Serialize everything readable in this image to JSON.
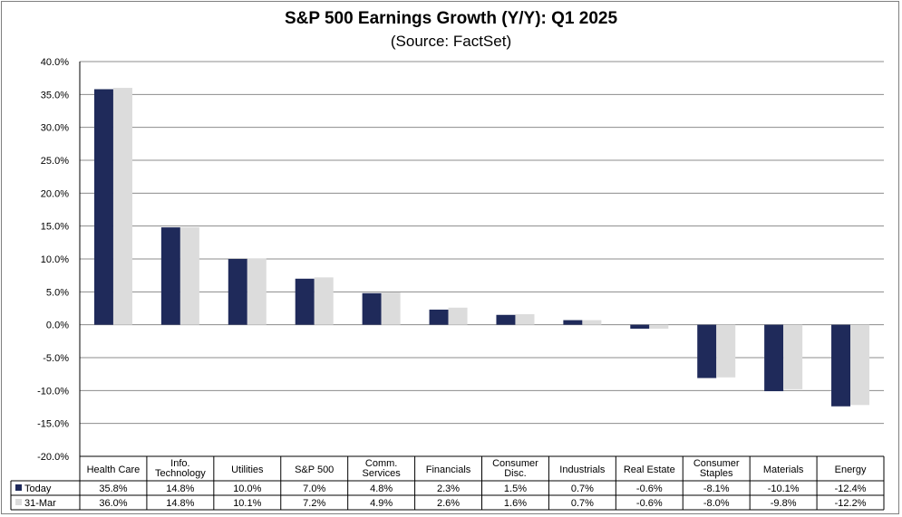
{
  "chart_data": {
    "type": "bar",
    "title": "S&P 500 Earnings Growth (Y/Y): Q1 2025",
    "subtitle": "(Source: FactSet)",
    "categories": [
      [
        "Health Care"
      ],
      [
        "Info.",
        "Technology"
      ],
      [
        "Utilities"
      ],
      [
        "S&P 500"
      ],
      [
        "Comm.",
        "Services"
      ],
      [
        "Financials"
      ],
      [
        "Consumer",
        "Disc."
      ],
      [
        "Industrials"
      ],
      [
        "Real Estate"
      ],
      [
        "Consumer",
        "Staples"
      ],
      [
        "Materials"
      ],
      [
        "Energy"
      ]
    ],
    "series": [
      {
        "name": "Today",
        "color": "#1f2a5a",
        "values": [
          35.8,
          14.8,
          10.0,
          7.0,
          4.8,
          2.3,
          1.5,
          0.7,
          -0.6,
          -8.1,
          -10.1,
          -12.4
        ],
        "labels": [
          "35.8%",
          "14.8%",
          "10.0%",
          "7.0%",
          "4.8%",
          "2.3%",
          "1.5%",
          "0.7%",
          "-0.6%",
          "-8.1%",
          "-10.1%",
          "-12.4%"
        ]
      },
      {
        "name": "31-Mar",
        "color": "#dcdcdc",
        "values": [
          36.0,
          14.8,
          10.1,
          7.2,
          4.9,
          2.6,
          1.6,
          0.7,
          -0.6,
          -8.0,
          -9.8,
          -12.2
        ],
        "labels": [
          "36.0%",
          "14.8%",
          "10.1%",
          "7.2%",
          "4.9%",
          "2.6%",
          "1.6%",
          "0.7%",
          "-0.6%",
          "-8.0%",
          "-9.8%",
          "-12.2%"
        ]
      }
    ],
    "ylim": [
      -20,
      40
    ],
    "yticks": [
      40,
      35,
      30,
      25,
      20,
      15,
      10,
      5,
      0,
      -5,
      -10,
      -15,
      -20
    ],
    "ytick_labels": [
      "40.0%",
      "35.0%",
      "30.0%",
      "25.0%",
      "20.0%",
      "15.0%",
      "10.0%",
      "5.0%",
      "0.0%",
      "-5.0%",
      "-10.0%",
      "-15.0%",
      "-20.0%"
    ],
    "grid": true,
    "legend": "data-table"
  }
}
